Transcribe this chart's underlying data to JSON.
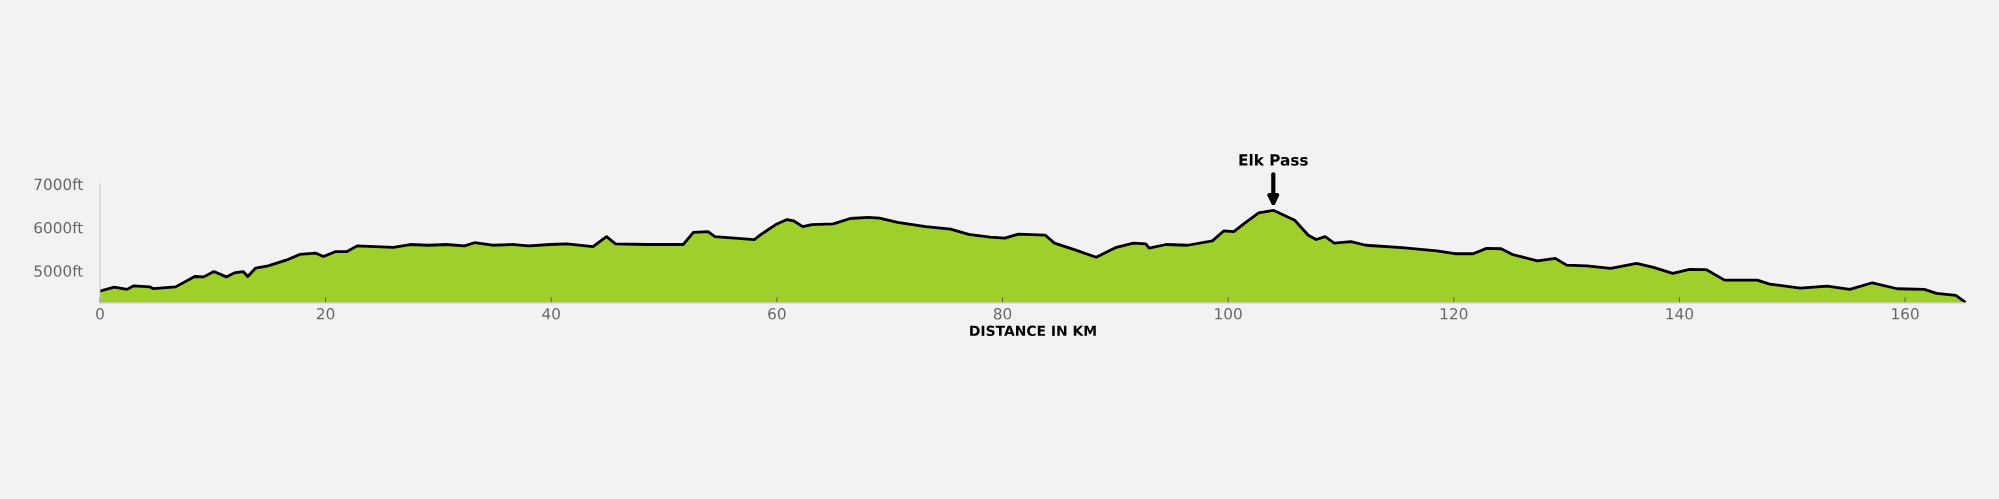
{
  "chart_data": {
    "type": "area",
    "xlabel": "DISTANCE IN KM",
    "xlim": [
      0,
      165.4
    ],
    "xticks": [
      0,
      20,
      40,
      60,
      80,
      100,
      120,
      140,
      160
    ],
    "ylim": [
      4260,
      7000
    ],
    "yticks": [
      {
        "value": 5000,
        "label": "5000ft"
      },
      {
        "value": 6000,
        "label": "6000ft"
      },
      {
        "value": 7000,
        "label": "7000ft"
      }
    ],
    "grid": false,
    "legend": false,
    "annotations": [
      {
        "text": "Elk Pass",
        "x": 104,
        "y": 6395
      }
    ],
    "series": [
      {
        "color": "#9fcf2a",
        "x": [
          0,
          1.27,
          2.4,
          3.0,
          4.4,
          4.7,
          6.7,
          8.4,
          9.2,
          10.1,
          11.2,
          11.9,
          12.7,
          13.1,
          13.8,
          14.9,
          16.5,
          17.7,
          19.1,
          19.8,
          20.9,
          21.9,
          22.8,
          24.4,
          26.0,
          27.5,
          29.1,
          30.7,
          32.3,
          33.2,
          34.8,
          36.7,
          38.0,
          39.9,
          41.4,
          43.7,
          44.9,
          45.7,
          48.5,
          51.7,
          52.6,
          53.9,
          54.5,
          58.0,
          58.6,
          59.9,
          60.9,
          61.5,
          62.3,
          63.1,
          65.0,
          66.5,
          68.1,
          69.1,
          70.7,
          73.2,
          75.4,
          77.0,
          78.9,
          80.2,
          81.4,
          83.8,
          84.6,
          86.5,
          88.3,
          90.0,
          91.6,
          92.7,
          93.0,
          94.5,
          96.4,
          98.6,
          99.6,
          100.5,
          101.5,
          102.7,
          104.0,
          105.9,
          107.1,
          107.8,
          108.6,
          109.4,
          110.9,
          112.2,
          115.4,
          118.5,
          120.1,
          121.7,
          122.9,
          124.2,
          125.2,
          127.4,
          129.0,
          130.0,
          131.8,
          133.9,
          136.2,
          137.7,
          139.4,
          140.9,
          142.4,
          144.0,
          146.9,
          148.0,
          150.7,
          153.1,
          155.1,
          157.1,
          159.3,
          161.7,
          162.8,
          164.5,
          165.4
        ],
        "values": [
          4531,
          4623,
          4572,
          4655,
          4630,
          4590,
          4630,
          4869,
          4860,
          4983,
          4860,
          4950,
          4983,
          4870,
          5064,
          5115,
          5246,
          5377,
          5409,
          5329,
          5444,
          5444,
          5575,
          5559,
          5540,
          5607,
          5590,
          5607,
          5575,
          5648,
          5590,
          5607,
          5575,
          5607,
          5623,
          5559,
          5788,
          5623,
          5607,
          5607,
          5887,
          5903,
          5788,
          5722,
          5841,
          6067,
          6182,
          6150,
          6018,
          6067,
          6083,
          6207,
          6232,
          6215,
          6117,
          6018,
          5961,
          5841,
          5780,
          5755,
          5846,
          5821,
          5640,
          5476,
          5313,
          5533,
          5640,
          5623,
          5525,
          5607,
          5590,
          5690,
          5920,
          5903,
          6108,
          6338,
          6395,
          6166,
          5821,
          5722,
          5788,
          5640,
          5673,
          5590,
          5533,
          5459,
          5394,
          5394,
          5517,
          5509,
          5377,
          5230,
          5287,
          5131,
          5115,
          5055,
          5170,
          5078,
          4940,
          5032,
          5025,
          4786,
          4786,
          4694,
          4602,
          4648,
          4571,
          4724,
          4586,
          4571,
          4480,
          4433,
          4264
        ]
      }
    ]
  }
}
